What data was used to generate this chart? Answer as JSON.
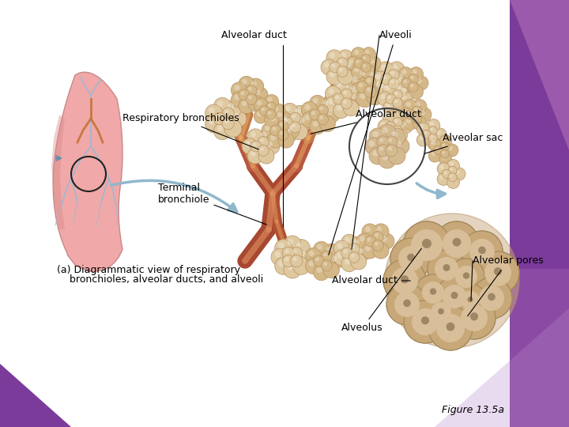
{
  "background_color": "#ffffff",
  "purple_color": "#7B3B9B",
  "fig_width": 7.2,
  "fig_height": 5.4,
  "title_label": "Figure 13.5a",
  "labels": {
    "alveolar_duct_top": "Alveolar duct",
    "alveoli": "Alveoli",
    "respiratory_bronchioles": "Respiratory bronchioles",
    "alveolar_duct_right": "Alveolar duct",
    "terminal_bronchiole": "Terminal\nbronchiole",
    "alveolar_sac": "Alveolar sac",
    "caption_line1": "(a) Diagrammatic view of respiratory",
    "caption_line2": "    bronchioles, alveolar ducts, and alveoli",
    "alveolar_pores": "Alveolar pores",
    "alveolar_duct_bottom": "Alveolar duct",
    "alveolus": "Alveolus"
  },
  "lung_color": "#F0A8A8",
  "lung_dark": "#D88888",
  "lung_vein": "#A0B8D0",
  "bronchiole_outer": "#C07848",
  "bronchiole_inner": "#8B3820",
  "bronchiole_stripe": "#E8A060",
  "alveoli_light": "#E8D5B0",
  "alveoli_mid": "#D4B888",
  "alveoli_dark": "#B89060",
  "alveoli_orange": "#C87830",
  "arrow_color": "#90B8CC",
  "text_color": "#000000",
  "label_fontsize": 9,
  "caption_fontsize": 9,
  "figure_label_fontsize": 9
}
